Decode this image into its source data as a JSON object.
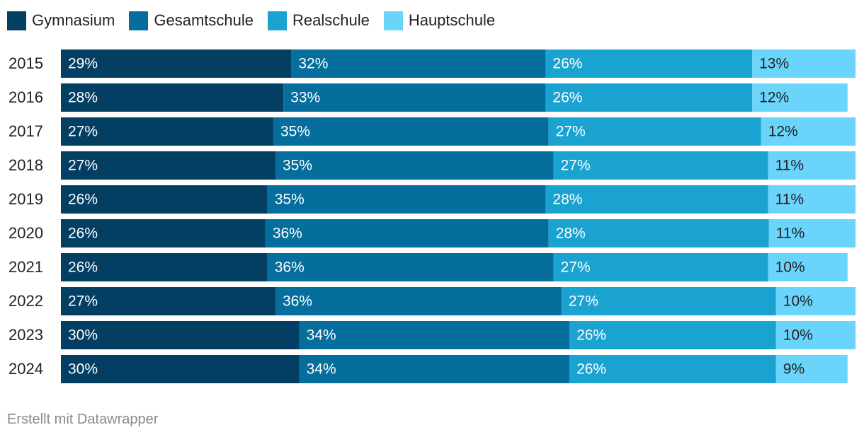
{
  "chart_data": {
    "type": "bar",
    "orientation": "horizontal",
    "stacked": true,
    "categories": [
      "2015",
      "2016",
      "2017",
      "2018",
      "2019",
      "2020",
      "2021",
      "2022",
      "2023",
      "2024"
    ],
    "series": [
      {
        "name": "Gymnasium",
        "color": "#033f63",
        "values": [
          29,
          28,
          27,
          27,
          26,
          26,
          26,
          27,
          30,
          30
        ]
      },
      {
        "name": "Gesamtschule",
        "color": "#056e9c",
        "values": [
          32,
          33,
          35,
          35,
          35,
          36,
          36,
          36,
          34,
          34
        ]
      },
      {
        "name": "Realschule",
        "color": "#1aa3d1",
        "values": [
          26,
          26,
          27,
          27,
          28,
          28,
          27,
          27,
          26,
          26
        ]
      },
      {
        "name": "Hauptschule",
        "color": "#6ad4fb",
        "values": [
          13,
          12,
          12,
          11,
          11,
          11,
          10,
          10,
          10,
          9
        ]
      }
    ],
    "value_suffix": "%",
    "legend_position": "top-left",
    "grid": false
  },
  "footer": "Erstellt mit Datawrapper"
}
